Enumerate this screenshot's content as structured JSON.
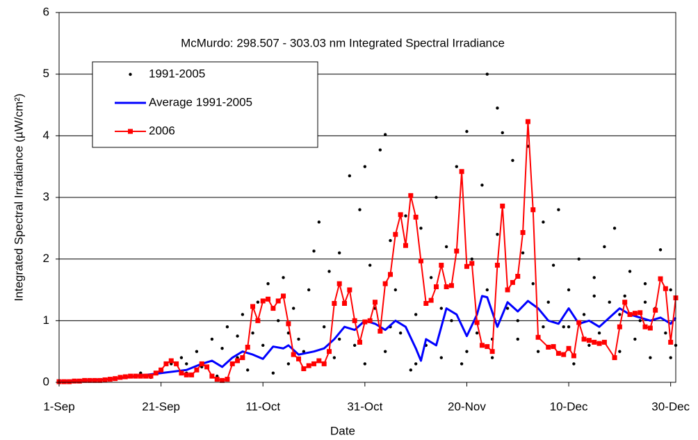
{
  "chart_data": {
    "type": "line",
    "title": "McMurdo: 298.507 - 303.03 nm Integrated Spectral Irradiance",
    "x_label": "Date",
    "y_label": "Integrated Spectral Irradiance (µW/cm²)",
    "xlim": [
      0,
      121
    ],
    "ylim": [
      0,
      6
    ],
    "xticks": [
      {
        "value": 0,
        "label": "1-Sep"
      },
      {
        "value": 20,
        "label": "21-Sep"
      },
      {
        "value": 40,
        "label": "11-Oct"
      },
      {
        "value": 60,
        "label": "31-Oct"
      },
      {
        "value": 80,
        "label": "20-Nov"
      },
      {
        "value": 100,
        "label": "10-Dec"
      },
      {
        "value": 120,
        "label": "30-Dec"
      }
    ],
    "yticks": [
      0,
      1,
      2,
      3,
      4,
      5,
      6
    ],
    "grid": true,
    "legend": "upper left",
    "series": [
      {
        "name": "1991-2005",
        "type": "scatter",
        "color": "#000000",
        "x": [
          5,
          10,
          14,
          16,
          18,
          20,
          22,
          24,
          25,
          27,
          28,
          30,
          31,
          32,
          33,
          34,
          35,
          36,
          37,
          38,
          39,
          40,
          41,
          42,
          43,
          44,
          45,
          46,
          47,
          48,
          49,
          50,
          51,
          52,
          53,
          54,
          55,
          56,
          57,
          58,
          59,
          60,
          60,
          61,
          62,
          63,
          64,
          64,
          65,
          66,
          67,
          68,
          69,
          70,
          71,
          72,
          73,
          74,
          75,
          76,
          77,
          78,
          79,
          80,
          81,
          82,
          83,
          84,
          84,
          85,
          86,
          86,
          87,
          88,
          89,
          90,
          91,
          92,
          93,
          94,
          95,
          96,
          97,
          98,
          99,
          100,
          101,
          102,
          103,
          104,
          105,
          106,
          107,
          108,
          109,
          110,
          111,
          112,
          113,
          114,
          115,
          116,
          117,
          118,
          119,
          120,
          121,
          120,
          110,
          100,
          90,
          80,
          70,
          65,
          55,
          45,
          35,
          25,
          115,
          105,
          95,
          85,
          75
        ],
        "values": [
          0.02,
          0.04,
          0.1,
          0.15,
          0.08,
          0.2,
          0.3,
          0.4,
          0.15,
          0.5,
          0.25,
          0.7,
          0.1,
          0.55,
          0.9,
          0.3,
          0.75,
          1.1,
          0.2,
          0.8,
          1.3,
          0.6,
          1.6,
          0.15,
          1.0,
          1.7,
          0.3,
          1.2,
          0.7,
          0.5,
          1.5,
          2.13,
          2.6,
          0.9,
          1.8,
          0.4,
          2.1,
          1.3,
          3.35,
          0.6,
          2.8,
          3.5,
          0.3,
          1.9,
          1.2,
          3.77,
          4.02,
          0.5,
          2.3,
          1.5,
          0.8,
          2.7,
          0.2,
          1.1,
          2.5,
          0.6,
          1.7,
          3.0,
          0.4,
          2.2,
          1.0,
          3.5,
          0.3,
          4.07,
          2.0,
          0.8,
          3.2,
          5.0,
          1.5,
          0.4,
          4.45,
          2.4,
          4.05,
          1.2,
          3.6,
          0.7,
          2.1,
          3.83,
          1.6,
          0.5,
          2.6,
          1.3,
          1.9,
          2.8,
          0.9,
          1.5,
          0.3,
          2.0,
          1.1,
          0.6,
          1.7,
          0.8,
          2.2,
          1.3,
          2.5,
          0.5,
          1.4,
          1.8,
          0.7,
          1.0,
          1.6,
          0.4,
          1.2,
          2.15,
          0.8,
          1.5,
          0.6,
          0.4,
          1.1,
          0.9,
          1.0,
          0.5,
          0.3,
          0.9,
          0.7,
          0.8,
          0.4,
          0.3,
          1.3,
          1.4,
          0.9,
          0.7,
          1.2
        ]
      },
      {
        "name": "Average 1991-2005",
        "type": "line",
        "color": "#0000ff",
        "x": [
          0,
          5,
          10,
          15,
          20,
          25,
          28,
          30,
          32,
          34,
          36,
          38,
          40,
          42,
          44,
          45,
          47,
          50,
          52,
          54,
          56,
          58,
          60,
          62,
          64,
          66,
          68,
          70,
          71,
          72,
          74,
          76,
          78,
          80,
          82,
          83,
          84,
          86,
          88,
          90,
          92,
          94,
          96,
          98,
          100,
          102,
          104,
          106,
          108,
          110,
          112,
          114,
          116,
          118,
          120,
          121
        ],
        "values": [
          0.02,
          0.03,
          0.05,
          0.1,
          0.15,
          0.2,
          0.3,
          0.35,
          0.25,
          0.4,
          0.5,
          0.45,
          0.38,
          0.58,
          0.55,
          0.6,
          0.45,
          0.5,
          0.55,
          0.7,
          0.9,
          0.85,
          1.0,
          0.95,
          0.85,
          1.0,
          0.9,
          0.55,
          0.35,
          0.7,
          0.6,
          1.2,
          1.1,
          0.75,
          1.1,
          1.4,
          1.38,
          0.9,
          1.3,
          1.15,
          1.32,
          1.2,
          1.0,
          0.95,
          1.2,
          0.95,
          1.0,
          0.9,
          1.05,
          1.2,
          1.1,
          1.05,
          1.0,
          1.05,
          0.95,
          1.05
        ]
      },
      {
        "name": "2006",
        "type": "line",
        "marker": "square",
        "color": "#ff0000",
        "x": [
          0,
          1,
          2,
          3,
          4,
          5,
          6,
          7,
          8,
          9,
          10,
          11,
          12,
          13,
          14,
          15,
          16,
          17,
          18,
          19,
          20,
          21,
          22,
          23,
          24,
          25,
          26,
          27,
          28,
          29,
          30,
          31,
          32,
          33,
          34,
          35,
          36,
          37,
          38,
          39,
          40,
          41,
          42,
          43,
          44,
          45,
          46,
          47,
          48,
          49,
          50,
          51,
          52,
          53,
          54,
          55,
          56,
          57,
          58,
          59,
          60,
          61,
          62,
          63,
          64,
          65,
          66,
          67,
          68,
          69,
          70,
          71,
          72,
          73,
          74,
          75,
          76,
          77,
          78,
          79,
          80,
          81,
          82,
          83,
          84,
          85,
          86,
          87,
          88,
          89,
          90,
          91,
          92,
          93,
          94,
          96,
          97,
          98,
          99,
          100,
          101,
          102,
          103,
          104,
          105,
          106,
          107,
          109,
          110,
          111,
          112,
          113,
          114,
          115,
          116,
          117,
          118,
          119,
          120,
          121
        ],
        "values": [
          0.01,
          0.01,
          0.01,
          0.02,
          0.02,
          0.03,
          0.03,
          0.03,
          0.03,
          0.04,
          0.05,
          0.06,
          0.08,
          0.09,
          0.1,
          0.1,
          0.1,
          0.1,
          0.1,
          0.15,
          0.2,
          0.3,
          0.35,
          0.3,
          0.15,
          0.12,
          0.12,
          0.2,
          0.3,
          0.25,
          0.1,
          0.05,
          0.03,
          0.05,
          0.3,
          0.35,
          0.4,
          0.57,
          1.23,
          1.0,
          1.32,
          1.35,
          1.2,
          1.32,
          1.4,
          0.95,
          0.45,
          0.38,
          0.22,
          0.27,
          0.3,
          0.35,
          0.3,
          0.5,
          1.28,
          1.6,
          1.28,
          1.5,
          1.0,
          0.65,
          0.98,
          1.0,
          1.3,
          0.83,
          1.6,
          1.75,
          2.4,
          2.72,
          2.22,
          3.03,
          2.68,
          1.97,
          1.28,
          1.33,
          1.55,
          1.9,
          1.55,
          1.57,
          2.13,
          3.42,
          1.88,
          1.93,
          0.97,
          0.6,
          0.58,
          0.5,
          1.9,
          2.86,
          1.5,
          1.62,
          1.72,
          2.43,
          4.23,
          2.8,
          0.73,
          0.57,
          0.58,
          0.47,
          0.45,
          0.55,
          0.43,
          0.97,
          0.7,
          0.68,
          0.65,
          0.63,
          0.65,
          0.4,
          0.9,
          1.3,
          1.1,
          1.12,
          1.13,
          0.9,
          0.88,
          1.17,
          1.68,
          1.52,
          0.65,
          1.37
        ]
      }
    ]
  }
}
